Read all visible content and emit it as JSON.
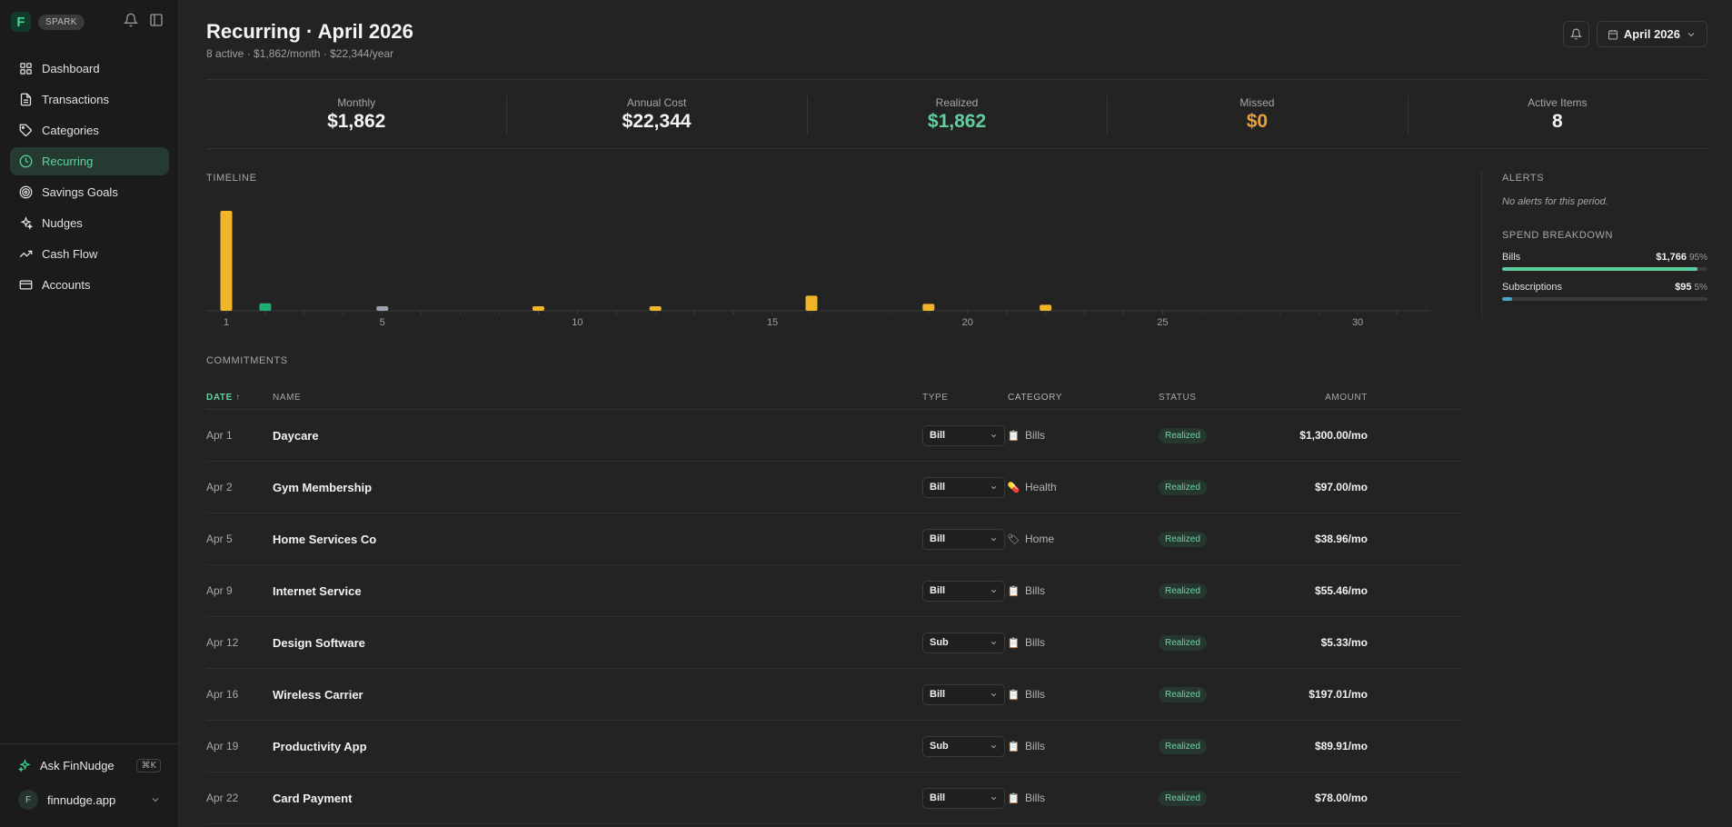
{
  "brand": {
    "logo_letter": "F",
    "badge": "SPARK"
  },
  "sidebar": {
    "items": [
      {
        "label": "Dashboard",
        "icon": "grid-icon"
      },
      {
        "label": "Transactions",
        "icon": "document-icon"
      },
      {
        "label": "Categories",
        "icon": "tag-icon"
      },
      {
        "label": "Recurring",
        "icon": "clock-icon",
        "active": true
      },
      {
        "label": "Savings Goals",
        "icon": "target-icon"
      },
      {
        "label": "Nudges",
        "icon": "sparkle-icon"
      },
      {
        "label": "Cash Flow",
        "icon": "trend-up-icon"
      },
      {
        "label": "Accounts",
        "icon": "card-icon"
      }
    ],
    "ask_label": "Ask FinNudge",
    "shortcut": "⌘K",
    "user": {
      "initial": "F",
      "name": "finnudge.app"
    }
  },
  "header": {
    "title": "Recurring · April 2026",
    "subtitle": "8 active · $1,862/month · $22,344/year",
    "month_label": "April 2026"
  },
  "stats": [
    {
      "label": "Monthly",
      "value": "$1,862",
      "color": "#f4f4f4"
    },
    {
      "label": "Annual Cost",
      "value": "$22,344",
      "color": "#f4f4f4"
    },
    {
      "label": "Realized",
      "value": "$1,862",
      "color": "#5fcf9f"
    },
    {
      "label": "Missed",
      "value": "$0",
      "color": "#e7a13c"
    },
    {
      "label": "Active Items",
      "value": "8",
      "color": "#f4f4f4"
    }
  ],
  "timeline": {
    "label": "TIMELINE",
    "chart_data": {
      "type": "bar",
      "x": [
        1,
        2,
        5,
        9,
        12,
        16,
        19,
        22
      ],
      "values": [
        1300,
        97,
        38.96,
        55.46,
        5.33,
        197.01,
        89.91,
        78.0
      ],
      "bar_colors": [
        "#f0b528",
        "#1fae72",
        "#9ca3ad",
        "#f0b528",
        "#f0b528",
        "#f0b528",
        "#f0b528",
        "#f0b528"
      ],
      "xlim": [
        1,
        31
      ],
      "xticks": [
        1,
        5,
        10,
        15,
        20,
        25,
        30
      ]
    }
  },
  "alerts": {
    "label": "ALERTS",
    "empty": "No alerts for this period."
  },
  "breakdown": {
    "label": "SPEND BREAKDOWN",
    "items": [
      {
        "name": "Bills",
        "amount": "$1,766",
        "pct": "95%",
        "fraction": 0.95,
        "color": "#5fcf9f"
      },
      {
        "name": "Subscriptions",
        "amount": "$95",
        "pct": "5%",
        "fraction": 0.05,
        "color": "#4aa3c7"
      }
    ]
  },
  "commitments": {
    "label": "COMMITMENTS",
    "columns": {
      "date": "DATE ↑",
      "name": "NAME",
      "type": "TYPE",
      "category": "CATEGORY",
      "status": "STATUS",
      "amount": "AMOUNT"
    },
    "rows": [
      {
        "date": "Apr 1",
        "name": "Daycare",
        "type": "Bill",
        "category": "Bills",
        "cat_icon": "📋",
        "status": "Realized",
        "amount": "$1,300.00/mo"
      },
      {
        "date": "Apr 2",
        "name": "Gym Membership",
        "type": "Bill",
        "category": "Health",
        "cat_icon": "💊",
        "status": "Realized",
        "amount": "$97.00/mo"
      },
      {
        "date": "Apr 5",
        "name": "Home Services Co",
        "type": "Bill",
        "category": "Home",
        "cat_icon": "🏷",
        "status": "Realized",
        "amount": "$38.96/mo"
      },
      {
        "date": "Apr 9",
        "name": "Internet Service",
        "type": "Bill",
        "category": "Bills",
        "cat_icon": "📋",
        "status": "Realized",
        "amount": "$55.46/mo"
      },
      {
        "date": "Apr 12",
        "name": "Design Software",
        "type": "Sub",
        "category": "Bills",
        "cat_icon": "📋",
        "status": "Realized",
        "amount": "$5.33/mo"
      },
      {
        "date": "Apr 16",
        "name": "Wireless Carrier",
        "type": "Bill",
        "category": "Bills",
        "cat_icon": "📋",
        "status": "Realized",
        "amount": "$197.01/mo"
      },
      {
        "date": "Apr 19",
        "name": "Productivity App",
        "type": "Sub",
        "category": "Bills",
        "cat_icon": "📋",
        "status": "Realized",
        "amount": "$89.91/mo"
      },
      {
        "date": "Apr 22",
        "name": "Card Payment",
        "type": "Bill",
        "category": "Bills",
        "cat_icon": "📋",
        "status": "Realized",
        "amount": "$78.00/mo"
      }
    ]
  }
}
